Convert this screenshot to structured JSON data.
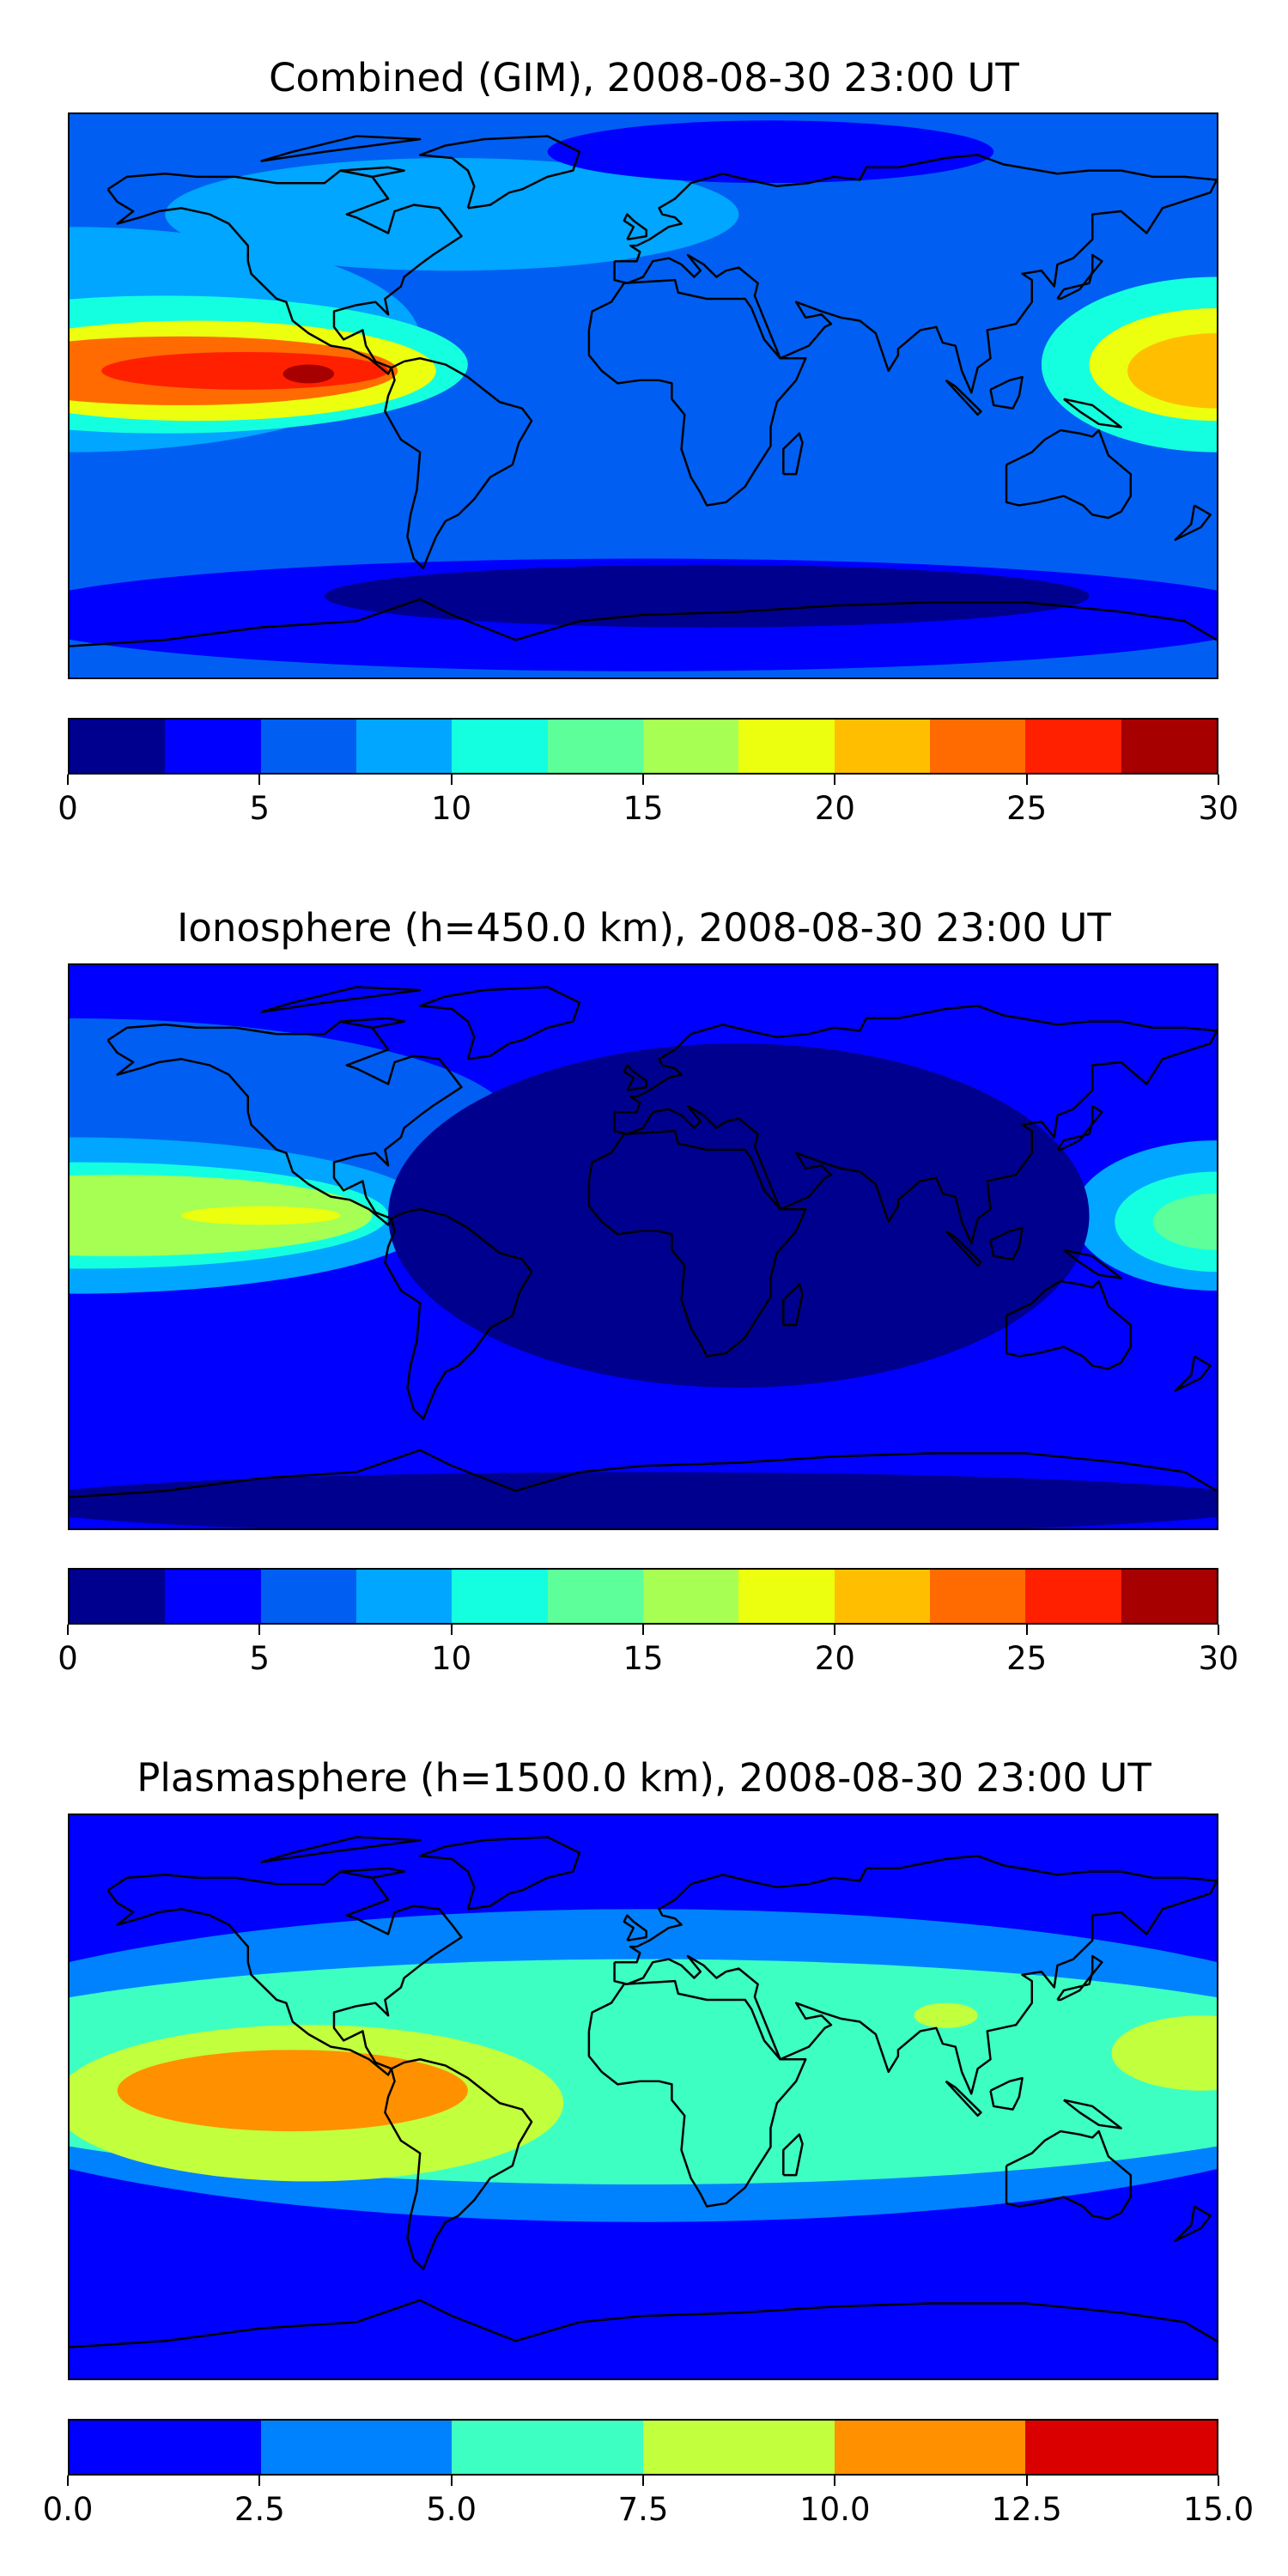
{
  "panels": [
    {
      "title": "Combined (GIM), 2008-08-30 23:00 UT",
      "colorbar": {
        "colors": [
          "#00008f",
          "#0000ff",
          "#005ff2",
          "#00a6ff",
          "#14ffe0",
          "#5cff99",
          "#a6ff52",
          "#ebff0f",
          "#ffbf00",
          "#ff6b00",
          "#ff2000",
          "#a60000"
        ],
        "ticks": [
          "0",
          "5",
          "10",
          "15",
          "20",
          "25",
          "30"
        ],
        "vmin": 0,
        "vmax": 30
      },
      "features": {
        "background": "#005ff2",
        "blobs": [
          {
            "lon": -180,
            "lat": 18,
            "rx": 110,
            "ry": 36,
            "color": "#00a6ff"
          },
          {
            "lon": -150,
            "lat": 10,
            "rx": 95,
            "ry": 22,
            "color": "#14ffe0"
          },
          {
            "lon": -140,
            "lat": 8,
            "rx": 75,
            "ry": 16,
            "color": "#ebff0f"
          },
          {
            "lon": -145,
            "lat": 8,
            "rx": 68,
            "ry": 11,
            "color": "#ff6b00"
          },
          {
            "lon": -125,
            "lat": 8,
            "rx": 45,
            "ry": 6,
            "color": "#ff2000"
          },
          {
            "lon": -105,
            "lat": 7,
            "rx": 8,
            "ry": 3,
            "color": "#a60000"
          },
          {
            "lon": 180,
            "lat": 10,
            "rx": 55,
            "ry": 28,
            "color": "#14ffe0"
          },
          {
            "lon": 180,
            "lat": 10,
            "rx": 40,
            "ry": 18,
            "color": "#ebff0f"
          },
          {
            "lon": 180,
            "lat": 8,
            "rx": 28,
            "ry": 12,
            "color": "#ffbf00"
          },
          {
            "lon": -60,
            "lat": 58,
            "rx": 90,
            "ry": 18,
            "color": "#00a6ff"
          },
          {
            "lon": 40,
            "lat": 78,
            "rx": 70,
            "ry": 10,
            "color": "#0000ff"
          },
          {
            "lon": 0,
            "lat": -70,
            "rx": 200,
            "ry": 18,
            "color": "#0000ff"
          },
          {
            "lon": 20,
            "lat": -64,
            "rx": 120,
            "ry": 10,
            "color": "#00008f"
          }
        ]
      }
    },
    {
      "title": "Ionosphere  (h=450.0 km), 2008-08-30 23:00 UT",
      "colorbar": {
        "colors": [
          "#00008f",
          "#0000ff",
          "#005ff2",
          "#00a6ff",
          "#14ffe0",
          "#5cff99",
          "#a6ff52",
          "#ebff0f",
          "#ffbf00",
          "#ff6b00",
          "#ff2000",
          "#a60000"
        ],
        "ticks": [
          "0",
          "5",
          "10",
          "15",
          "20",
          "25",
          "30"
        ],
        "vmin": 0,
        "vmax": 30
      },
      "features": {
        "background": "#0000ff",
        "blobs": [
          {
            "lon": -180,
            "lat": 38,
            "rx": 140,
            "ry": 35,
            "color": "#005ff2"
          },
          {
            "lon": -180,
            "lat": 10,
            "rx": 115,
            "ry": 25,
            "color": "#00a6ff"
          },
          {
            "lon": -175,
            "lat": 10,
            "rx": 95,
            "ry": 17,
            "color": "#14ffe0"
          },
          {
            "lon": -165,
            "lat": 10,
            "rx": 80,
            "ry": 13,
            "color": "#a6ff52"
          },
          {
            "lon": -120,
            "lat": 10,
            "rx": 25,
            "ry": 3,
            "color": "#ebff0f"
          },
          {
            "lon": 180,
            "lat": 10,
            "rx": 45,
            "ry": 24,
            "color": "#00a6ff"
          },
          {
            "lon": 180,
            "lat": 8,
            "rx": 32,
            "ry": 16,
            "color": "#14ffe0"
          },
          {
            "lon": 180,
            "lat": 8,
            "rx": 20,
            "ry": 9,
            "color": "#5cff99"
          },
          {
            "lon": 30,
            "lat": 10,
            "rx": 110,
            "ry": 55,
            "color": "#00008f"
          },
          {
            "lon": 0,
            "lat": -82,
            "rx": 200,
            "ry": 10,
            "color": "#00008f"
          }
        ]
      }
    },
    {
      "title": "Plasmasphere (h=1500.0 km), 2008-08-30 23:00 UT",
      "colorbar": {
        "colors": [
          "#0000ff",
          "#0082ff",
          "#3dffc2",
          "#c2ff3d",
          "#ff9100",
          "#db0000"
        ],
        "ticks": [
          "0.0",
          "2.5",
          "5.0",
          "7.5",
          "10.0",
          "12.5",
          "15.0"
        ],
        "vmin": 0,
        "vmax": 15
      },
      "features": {
        "background": "#0000ff",
        "blobs": [
          {
            "lon": 0,
            "lat": 10,
            "rx": 240,
            "ry": 50,
            "color": "#0082ff"
          },
          {
            "lon": 0,
            "lat": 8,
            "rx": 240,
            "ry": 36,
            "color": "#3dffc2"
          },
          {
            "lon": -105,
            "lat": -2,
            "rx": 80,
            "ry": 25,
            "color": "#c2ff3d"
          },
          {
            "lon": 175,
            "lat": 14,
            "rx": 28,
            "ry": 12,
            "color": "#c2ff3d"
          },
          {
            "lon": 95,
            "lat": 26,
            "rx": 10,
            "ry": 4,
            "color": "#c2ff3d"
          },
          {
            "lon": -110,
            "lat": 2,
            "rx": 55,
            "ry": 13,
            "color": "#ff9100"
          }
        ]
      }
    }
  ]
}
